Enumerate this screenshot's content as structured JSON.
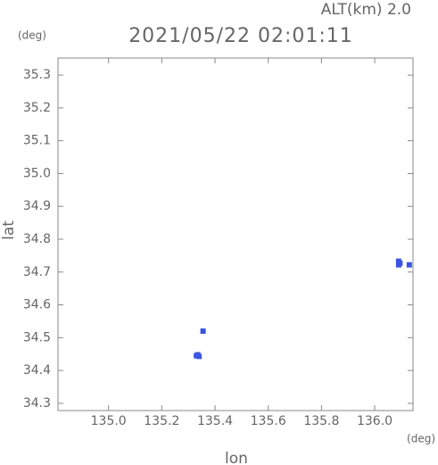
{
  "chart_data": {
    "type": "scatter",
    "title": "2021/05/22 02:01:11",
    "annotation": "ALT(km) 2.0",
    "x_label": "lon",
    "y_label": "lat",
    "x_unit": "(deg)",
    "y_unit": "(deg)",
    "xlim": [
      134.81,
      136.144
    ],
    "ylim": [
      34.278,
      35.352
    ],
    "xticks": [
      {
        "value": 135.0,
        "label": "135.0"
      },
      135.2,
      135.4,
      135.6,
      135.8,
      {
        "value": 136.0,
        "label": "136.0"
      }
    ],
    "yticks": [
      34.3,
      34.4,
      34.5,
      34.6,
      34.7,
      34.8,
      34.9,
      {
        "value": 35.0,
        "label": "35.0"
      },
      35.1,
      35.2,
      35.3
    ],
    "series": [
      {
        "color": "#3a55e0",
        "x": [
          135.33,
          135.34,
          135.335,
          135.355,
          136.09,
          136.095,
          136.09,
          136.13
        ],
        "y": [
          34.445,
          34.443,
          34.448,
          34.52,
          34.733,
          34.727,
          34.722,
          34.722
        ]
      }
    ]
  }
}
